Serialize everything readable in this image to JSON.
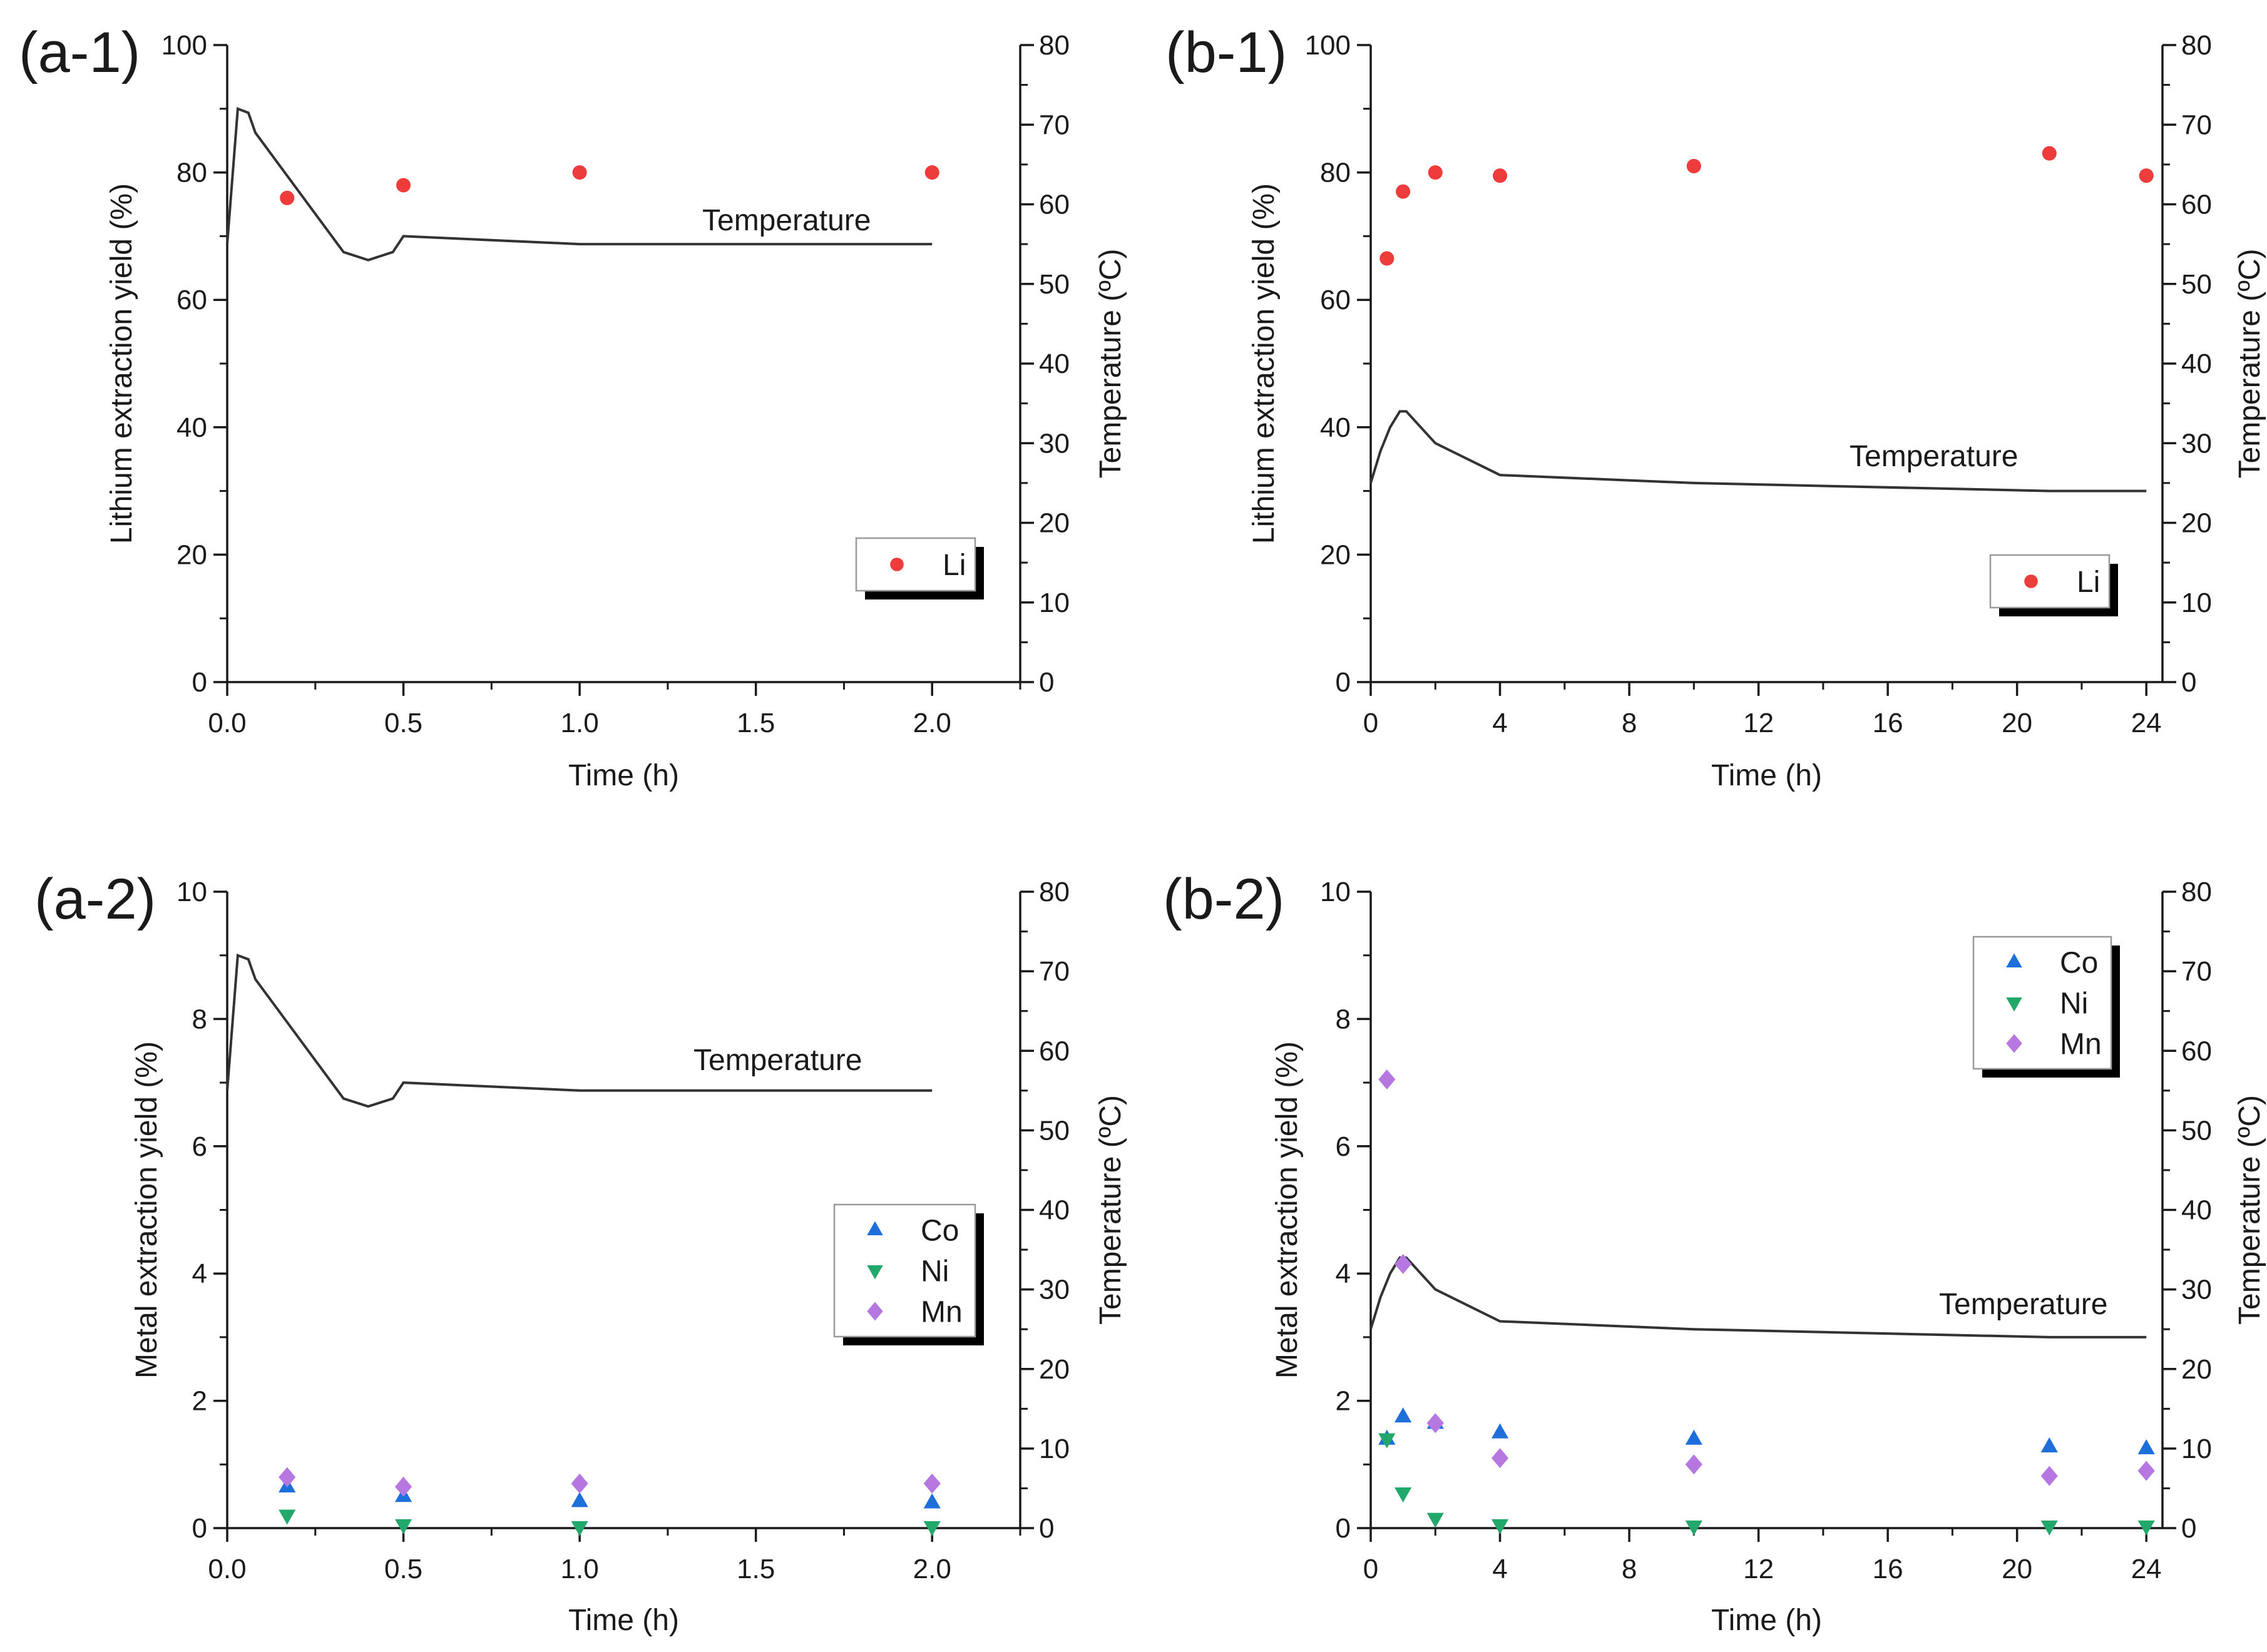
{
  "chart_data": [
    {
      "panel": "(a-1)",
      "type": "scatter",
      "xlabel": "Time (h)",
      "ylabel": "Lithium extraction yield (%)",
      "y2label": "Temperature (ºC)",
      "xlim": [
        0,
        2.25
      ],
      "ylim": [
        0,
        100
      ],
      "y2lim": [
        0,
        80
      ],
      "xticks": [
        "0.0",
        "0.5",
        "1.0",
        "1.5",
        "2.0"
      ],
      "yticks": [
        "0",
        "20",
        "40",
        "60",
        "80",
        "100"
      ],
      "y2ticks": [
        "0",
        "10",
        "20",
        "30",
        "40",
        "50",
        "60",
        "70",
        "80"
      ],
      "legend_position": "lower-right",
      "series": [
        {
          "name": "Li",
          "marker": "circle",
          "color": "#ee3b3b",
          "x": [
            0.17,
            0.5,
            1.0,
            2.0
          ],
          "y": [
            76,
            78,
            80,
            80
          ]
        }
      ],
      "temperature": {
        "label": "Temperature",
        "x": [
          0.0,
          0.03,
          0.06,
          0.08,
          0.33,
          0.4,
          0.47,
          0.5,
          1.0,
          2.0
        ],
        "y": [
          55,
          72,
          71.5,
          69,
          54,
          53,
          54,
          56,
          55,
          55
        ]
      }
    },
    {
      "panel": "(b-1)",
      "type": "scatter",
      "xlabel": "Time (h)",
      "ylabel": "Lithium extraction yield (%)",
      "y2label": "Temperature (ºC)",
      "xlim": [
        0,
        24.5
      ],
      "ylim": [
        0,
        100
      ],
      "y2lim": [
        0,
        80
      ],
      "xticks": [
        "0",
        "4",
        "8",
        "12",
        "16",
        "20",
        "24"
      ],
      "yticks": [
        "0",
        "20",
        "40",
        "60",
        "80",
        "100"
      ],
      "y2ticks": [
        "0",
        "10",
        "20",
        "30",
        "40",
        "50",
        "60",
        "70",
        "80"
      ],
      "legend_position": "lower-right",
      "series": [
        {
          "name": "Li",
          "marker": "circle",
          "color": "#ee3b3b",
          "x": [
            0.5,
            1,
            2,
            4,
            10,
            21,
            24
          ],
          "y": [
            66.5,
            77,
            80,
            79.5,
            81,
            83,
            79.5
          ]
        }
      ],
      "temperature": {
        "label": "Temperature",
        "x": [
          0,
          0.3,
          0.6,
          0.9,
          1.1,
          2,
          4,
          10,
          21,
          24
        ],
        "y": [
          25,
          29,
          32,
          34,
          34,
          30,
          26,
          25,
          24,
          24
        ]
      }
    },
    {
      "panel": "(a-2)",
      "type": "scatter",
      "xlabel": "Time (h)",
      "ylabel": "Metal extraction yield (%)",
      "y2label": "Temperature (ºC)",
      "xlim": [
        0,
        2.25
      ],
      "ylim": [
        0,
        10
      ],
      "y2lim": [
        0,
        80
      ],
      "xticks": [
        "0.0",
        "0.5",
        "1.0",
        "1.5",
        "2.0"
      ],
      "yticks": [
        "0",
        "2",
        "4",
        "6",
        "8",
        "10"
      ],
      "y2ticks": [
        "0",
        "10",
        "20",
        "30",
        "40",
        "50",
        "60",
        "70",
        "80"
      ],
      "legend_position": "middle-right",
      "series": [
        {
          "name": "Co",
          "marker": "triangle-up",
          "color": "#1f6fdb",
          "x": [
            0.17,
            0.5,
            1.0,
            2.0
          ],
          "y": [
            0.65,
            0.5,
            0.42,
            0.4
          ]
        },
        {
          "name": "Ni",
          "marker": "triangle-down",
          "color": "#23a86b",
          "x": [
            0.17,
            0.5,
            1.0,
            2.0
          ],
          "y": [
            0.2,
            0.05,
            0.02,
            0.02
          ]
        },
        {
          "name": "Mn",
          "marker": "diamond",
          "color": "#b678e0",
          "x": [
            0.17,
            0.5,
            1.0,
            2.0
          ],
          "y": [
            0.8,
            0.65,
            0.7,
            0.7
          ]
        }
      ],
      "temperature": {
        "label": "Temperature",
        "x": [
          0.0,
          0.03,
          0.06,
          0.08,
          0.33,
          0.4,
          0.47,
          0.5,
          1.0,
          2.0
        ],
        "y": [
          55,
          72,
          71.5,
          69,
          54,
          53,
          54,
          56,
          55,
          55
        ]
      }
    },
    {
      "panel": "(b-2)",
      "type": "scatter",
      "xlabel": "Time (h)",
      "ylabel": "Metal extraction yield (%)",
      "y2label": "Temperature (ºC)",
      "xlim": [
        0,
        24.5
      ],
      "ylim": [
        0,
        10
      ],
      "y2lim": [
        0,
        80
      ],
      "xticks": [
        "0",
        "4",
        "8",
        "12",
        "16",
        "20",
        "24"
      ],
      "yticks": [
        "0",
        "2",
        "4",
        "6",
        "8",
        "10"
      ],
      "y2ticks": [
        "0",
        "10",
        "20",
        "30",
        "40",
        "50",
        "60",
        "70",
        "80"
      ],
      "legend_position": "top-right",
      "series": [
        {
          "name": "Co",
          "marker": "triangle-up",
          "color": "#1f6fdb",
          "x": [
            0.5,
            1,
            2,
            4,
            10,
            21,
            24
          ],
          "y": [
            1.4,
            1.75,
            1.65,
            1.5,
            1.4,
            1.28,
            1.25
          ]
        },
        {
          "name": "Ni",
          "marker": "triangle-down",
          "color": "#23a86b",
          "x": [
            0.5,
            1,
            2,
            4,
            10,
            21,
            24
          ],
          "y": [
            1.4,
            0.55,
            0.15,
            0.05,
            0.03,
            0.03,
            0.03
          ]
        },
        {
          "name": "Mn",
          "marker": "diamond",
          "color": "#b678e0",
          "x": [
            0.5,
            1,
            2,
            4,
            10,
            21,
            24
          ],
          "y": [
            7.05,
            4.15,
            1.65,
            1.1,
            1.0,
            0.82,
            0.9
          ]
        }
      ],
      "temperature": {
        "label": "Temperature",
        "x": [
          0,
          0.3,
          0.6,
          0.9,
          1.1,
          2,
          4,
          10,
          21,
          24
        ],
        "y": [
          25,
          29,
          32,
          34,
          34,
          30,
          26,
          25,
          24,
          24
        ]
      }
    }
  ]
}
